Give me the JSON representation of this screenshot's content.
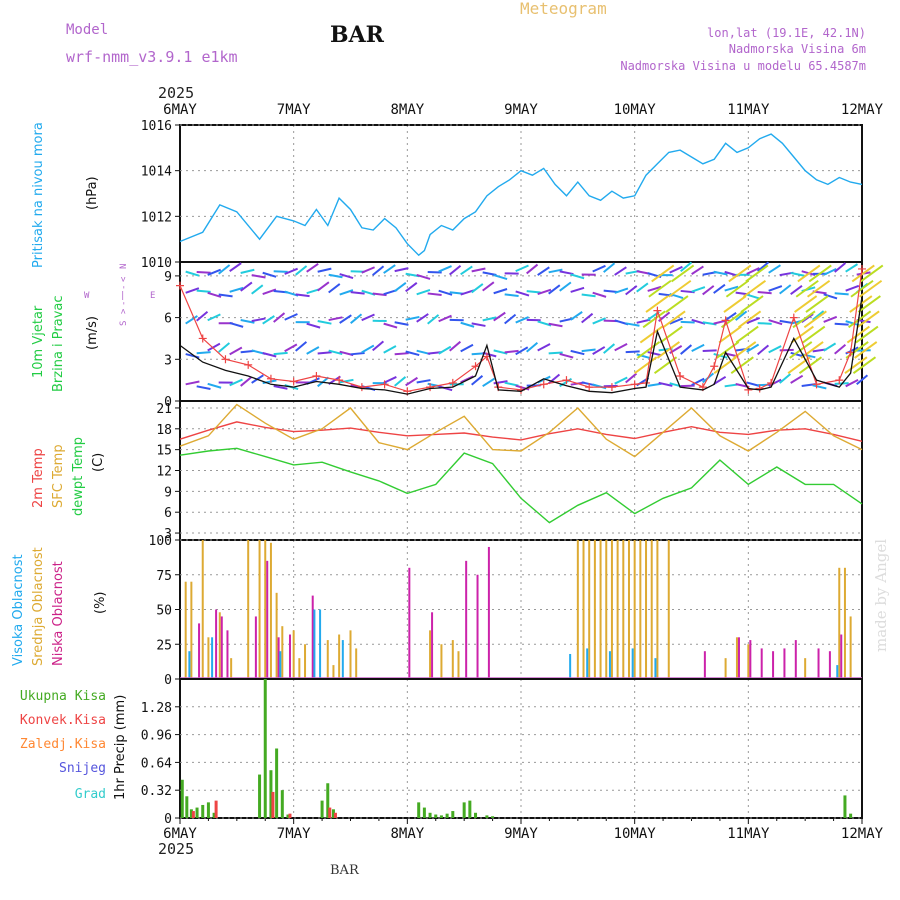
{
  "header": {
    "model_label": "Model",
    "model_name": "wrf-nmm_v3.9.1 e1km",
    "station": "BAR",
    "meteogram": "Meteogram",
    "lonlat": "lon,lat (19.1E, 42.1N)",
    "elev": "Nadmorska Visina 6m",
    "elev_model": "Nadmorska Visina u modelu 65.4587m",
    "year": "2025",
    "footer_station": "BAR",
    "watermark": "made by Angel"
  },
  "colors": {
    "pressure": "#22aaee",
    "t2m": "#ee4444",
    "sfc": "#ddaa33",
    "dew": "#33cc33",
    "cloud_high": "#22aaee",
    "cloud_mid": "#ddaa33",
    "cloud_low": "#cc22aa",
    "precip_total": "#44aa22",
    "precip_conv": "#ee4444",
    "precip_freeze": "#ff8833",
    "precip_snow": "#5555dd",
    "precip_hail": "#33cccc",
    "gust": "#ee4444",
    "wind_speed": "#111111"
  },
  "chart_data": [
    {
      "type": "line",
      "name": "pressure",
      "ylabel_main": "Pritisak na nivou mora",
      "ylabel_unit": "(hPa)",
      "ylim": [
        1010,
        1016
      ],
      "yticks": [
        "1010",
        "1012",
        "1014",
        "1016"
      ],
      "xticks": [
        "6MAY",
        "7MAY",
        "8MAY",
        "9MAY",
        "10MAY",
        "11MAY",
        "12MAY"
      ],
      "x_days": [
        0,
        0.2,
        0.35,
        0.5,
        0.7,
        0.85,
        1.0,
        1.1,
        1.2,
        1.3,
        1.4,
        1.5,
        1.6,
        1.7,
        1.8,
        1.9,
        2.0,
        2.1,
        2.15,
        2.2,
        2.3,
        2.4,
        2.5,
        2.6,
        2.7,
        2.8,
        2.9,
        3.0,
        3.1,
        3.2,
        3.3,
        3.4,
        3.5,
        3.6,
        3.7,
        3.8,
        3.9,
        4.0,
        4.1,
        4.2,
        4.3,
        4.4,
        4.5,
        4.6,
        4.7,
        4.8,
        4.9,
        5.0,
        5.1,
        5.2,
        5.3,
        5.4,
        5.5,
        5.6,
        5.7,
        5.8,
        5.9,
        6.0
      ],
      "values": [
        1010.9,
        1011.3,
        1012.5,
        1012.2,
        1011.0,
        1012.0,
        1011.8,
        1011.6,
        1012.3,
        1011.6,
        1012.8,
        1012.3,
        1011.5,
        1011.4,
        1011.9,
        1011.5,
        1010.8,
        1010.3,
        1010.5,
        1011.2,
        1011.6,
        1011.4,
        1011.9,
        1012.2,
        1012.9,
        1013.3,
        1013.6,
        1014.0,
        1013.8,
        1014.1,
        1013.4,
        1012.9,
        1013.5,
        1012.9,
        1012.7,
        1013.1,
        1012.8,
        1012.9,
        1013.8,
        1014.3,
        1014.8,
        1014.9,
        1014.6,
        1014.3,
        1014.5,
        1015.2,
        1014.8,
        1015.0,
        1015.4,
        1015.6,
        1015.2,
        1014.6,
        1014.0,
        1013.6,
        1013.4,
        1013.7,
        1013.5,
        1013.4
      ]
    },
    {
      "type": "line",
      "name": "wind",
      "ylabel_main": "10m Vjetar",
      "ylabel_main2": "Brzina i Pravac",
      "ylabel_unit": "(m/s)",
      "compass": [
        "N",
        "<",
        "-",
        "|",
        "-",
        ">",
        "S",
        "W",
        "E"
      ],
      "ylim": [
        0,
        10
      ],
      "yticks": [
        "0",
        "3",
        "6",
        "9"
      ],
      "x_days": [
        0,
        0.2,
        0.4,
        0.6,
        0.8,
        1.0,
        1.2,
        1.4,
        1.6,
        1.8,
        2.0,
        2.2,
        2.4,
        2.6,
        2.7,
        2.8,
        3.0,
        3.2,
        3.4,
        3.6,
        3.8,
        4.0,
        4.1,
        4.2,
        4.4,
        4.6,
        4.7,
        4.8,
        5.0,
        5.1,
        5.2,
        5.4,
        5.6,
        5.8,
        5.9,
        6.0
      ],
      "series": [
        {
          "role": "gust",
          "values": [
            8.3,
            4.5,
            3.0,
            2.6,
            1.6,
            1.4,
            1.8,
            1.5,
            1.0,
            1.2,
            0.7,
            1.0,
            1.3,
            2.5,
            3.2,
            1.0,
            0.8,
            1.2,
            1.5,
            1.0,
            1.0,
            1.2,
            1.3,
            6.5,
            1.8,
            1.0,
            2.5,
            5.8,
            0.8,
            0.9,
            1.3,
            6.0,
            1.2,
            1.5,
            3.5,
            9.5
          ]
        },
        {
          "role": "speed",
          "values": [
            4.0,
            2.8,
            2.2,
            1.8,
            1.2,
            1.0,
            1.4,
            1.2,
            0.9,
            0.8,
            0.5,
            0.9,
            1.0,
            1.8,
            4.0,
            0.8,
            0.7,
            1.6,
            1.1,
            0.7,
            0.6,
            0.9,
            1.0,
            5.0,
            1.0,
            0.8,
            1.2,
            3.5,
            0.9,
            0.8,
            1.0,
            4.5,
            1.5,
            1.0,
            2.0,
            7.5
          ]
        }
      ]
    },
    {
      "type": "line",
      "name": "temperature",
      "ylabel_t2m": "2m Temp",
      "ylabel_sfc": "SFC Temp",
      "ylabel_dew": "dewpt Temp",
      "ylabel_unit": "(C)",
      "ylim": [
        2,
        22
      ],
      "yticks": [
        "3",
        "6",
        "9",
        "12",
        "15",
        "18",
        "21"
      ],
      "x_days": [
        0,
        0.25,
        0.5,
        0.75,
        1.0,
        1.25,
        1.5,
        1.75,
        2.0,
        2.25,
        2.5,
        2.75,
        3.0,
        3.25,
        3.5,
        3.75,
        4.0,
        4.25,
        4.5,
        4.75,
        5.0,
        5.25,
        5.5,
        5.75,
        6.0
      ],
      "series": [
        {
          "role": "t2m",
          "values": [
            16.5,
            17.8,
            19.0,
            18.2,
            17.6,
            17.8,
            18.1,
            17.5,
            17.0,
            17.2,
            17.4,
            16.8,
            16.4,
            17.3,
            18.0,
            17.2,
            16.6,
            17.5,
            18.3,
            17.5,
            17.2,
            17.8,
            18.0,
            17.2,
            16.2
          ]
        },
        {
          "role": "sfc",
          "values": [
            15.5,
            17.0,
            21.5,
            18.8,
            16.5,
            18.0,
            21.0,
            16.0,
            15.0,
            17.5,
            19.8,
            15.0,
            14.8,
            17.5,
            21.0,
            16.5,
            14.0,
            17.5,
            21.0,
            17.0,
            14.8,
            17.5,
            20.5,
            17.0,
            15.0
          ]
        },
        {
          "role": "dew",
          "values": [
            14.2,
            14.8,
            15.2,
            14.0,
            12.8,
            13.2,
            11.8,
            10.5,
            8.7,
            10.0,
            14.5,
            13.0,
            8.0,
            4.5,
            7.0,
            8.8,
            5.8,
            8.0,
            9.5,
            13.5,
            10.0,
            12.5,
            10.0,
            10.0,
            7.2
          ]
        }
      ]
    },
    {
      "type": "bar",
      "name": "clouds",
      "ylabel_high": "Visoka Oblacnost",
      "ylabel_mid": "Srednja Oblacnost",
      "ylabel_low": "Niska Oblacnost",
      "ylabel_unit": "(%)",
      "ylim": [
        0,
        100
      ],
      "yticks": [
        "0",
        "25",
        "50",
        "75",
        "100"
      ],
      "series": [
        {
          "role": "mid",
          "x_days": [
            0.05,
            0.1,
            0.2,
            0.25,
            0.35,
            0.45,
            0.6,
            0.7,
            0.75,
            0.8,
            0.85,
            0.9,
            1.0,
            1.05,
            1.1,
            1.3,
            1.35,
            1.4,
            1.5,
            1.55,
            2.2,
            2.3,
            2.4,
            2.45,
            3.5,
            3.55,
            3.6,
            3.65,
            3.7,
            3.75,
            3.8,
            3.85,
            3.9,
            3.95,
            4.0,
            4.05,
            4.1,
            4.15,
            4.2,
            4.3,
            4.8,
            4.9,
            5.0,
            5.5,
            5.8,
            5.85,
            5.9
          ],
          "values": [
            70,
            70,
            100,
            30,
            48,
            15,
            100,
            100,
            100,
            98,
            62,
            38,
            35,
            15,
            25,
            28,
            10,
            32,
            35,
            22,
            35,
            25,
            28,
            20,
            100,
            100,
            100,
            100,
            100,
            100,
            100,
            100,
            100,
            100,
            100,
            100,
            100,
            100,
            100,
            100,
            15,
            30,
            25,
            15,
            80,
            80,
            45
          ]
        },
        {
          "role": "low",
          "x_days": [
            0.15,
            0.3,
            0.35,
            0.4,
            0.65,
            0.75,
            0.85,
            0.95,
            1.15,
            2.0,
            2.2,
            2.5,
            2.6,
            2.7,
            4.6,
            4.9,
            5.0,
            5.1,
            5.2,
            5.3,
            5.4,
            5.6,
            5.7,
            5.8
          ],
          "values": [
            40,
            50,
            45,
            35,
            45,
            85,
            30,
            32,
            60,
            80,
            48,
            85,
            75,
            95,
            20,
            30,
            28,
            22,
            20,
            22,
            28,
            22,
            20,
            32
          ]
        },
        {
          "role": "high",
          "x_days": [
            0.1,
            0.3,
            0.9,
            1.2,
            1.25,
            1.45,
            3.45,
            3.6,
            3.8,
            4.0,
            4.2,
            5.8
          ],
          "values": [
            20,
            30,
            20,
            50,
            50,
            28,
            18,
            22,
            20,
            22,
            15,
            10
          ]
        }
      ]
    },
    {
      "type": "bar",
      "name": "precipitation",
      "legend": [
        "Ukupna Kisa",
        "Konvek.Kisa",
        "Zaledj.Kisa",
        "Snijeg",
        "Grad"
      ],
      "ylabel_unit": "1hr Precip (mm)",
      "ylim": [
        0,
        1.6
      ],
      "yticks": [
        "0",
        "0.32",
        "0.64",
        "0.96",
        "1.28"
      ],
      "series": [
        {
          "role": "total",
          "x_days": [
            0.02,
            0.06,
            0.1,
            0.15,
            0.2,
            0.25,
            0.3,
            0.7,
            0.75,
            0.8,
            0.85,
            0.9,
            0.95,
            1.25,
            1.3,
            1.35,
            2.1,
            2.15,
            2.2,
            2.25,
            2.3,
            2.35,
            2.4,
            2.5,
            2.55,
            2.6,
            2.7,
            2.75,
            5.85,
            5.9
          ],
          "values": [
            0.44,
            0.25,
            0.1,
            0.12,
            0.15,
            0.18,
            0.06,
            0.5,
            1.6,
            0.55,
            0.8,
            0.32,
            0.04,
            0.2,
            0.4,
            0.1,
            0.18,
            0.12,
            0.06,
            0.04,
            0.03,
            0.05,
            0.08,
            0.18,
            0.2,
            0.06,
            0.03,
            0.02,
            0.26,
            0.05
          ]
        },
        {
          "role": "convective",
          "x_days": [
            0.1,
            0.3,
            0.8,
            0.95,
            1.3,
            1.35
          ],
          "values": [
            0.08,
            0.2,
            0.3,
            0.05,
            0.12,
            0.06
          ]
        }
      ]
    }
  ]
}
